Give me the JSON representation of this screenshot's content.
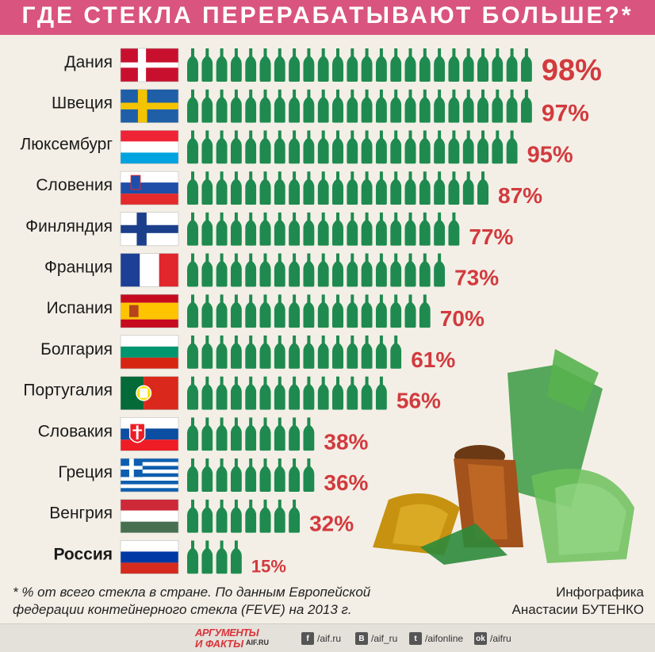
{
  "title": "ГДЕ СТЕКЛА ПЕРЕРАБАТЫВАЮТ БОЛЬШЕ?*",
  "chart_data": {
    "type": "bar",
    "title": "ГДЕ СТЕКЛА ПЕРЕРАБАТЫВАЮТ БОЛЬШЕ?*",
    "categories": [
      "Дания",
      "Швеция",
      "Люксембург",
      "Словения",
      "Финляндия",
      "Франция",
      "Испания",
      "Болгария",
      "Португалия",
      "Словакия",
      "Греция",
      "Венгрия",
      "Россия"
    ],
    "values": [
      98,
      97,
      95,
      87,
      77,
      73,
      70,
      61,
      56,
      38,
      36,
      32,
      15
    ],
    "value_labels": [
      "98%",
      "97%",
      "95%",
      "87%",
      "77%",
      "73%",
      "70%",
      "61%",
      "56%",
      "38%",
      "36%",
      "32%",
      "15%"
    ],
    "bottles_per_bar": [
      24,
      24,
      23,
      21,
      19,
      18,
      17,
      15,
      14,
      9,
      9,
      8,
      4
    ],
    "highlight": "Россия",
    "ylim": [
      0,
      100
    ],
    "grid": false
  },
  "colors": {
    "bottle": "#1f8a4f",
    "bottle_dark": "#136a3b",
    "percent": "#d23a3e",
    "russia_label": "#d9547f",
    "russia_percent": "#e07aa0",
    "title_bar": "#d9547f"
  },
  "flags": [
    "flag-denmark",
    "flag-sweden",
    "flag-luxembourg",
    "flag-slovenia",
    "flag-finland",
    "flag-france",
    "flag-spain",
    "flag-bulgaria",
    "flag-portugal",
    "flag-slovakia",
    "flag-greece",
    "flag-hungary",
    "flag-russia"
  ],
  "footnote": {
    "line1": "* % от всего стекла в стране. По данным Европейской",
    "line2": "федерации контейнерного стекла (FEVE) на 2013 г."
  },
  "credit": {
    "line1": "Инфографика",
    "line2": "Анастасии БУТЕНКО"
  },
  "footer": {
    "logo_line1": "АРГУМЕНТЫ",
    "logo_line2": "И ФАКТЫ",
    "logo_site": "AIF.RU",
    "social": [
      {
        "icon": "f",
        "label": "/aif.ru"
      },
      {
        "icon": "В",
        "label": "/aif_ru"
      },
      {
        "icon": "t",
        "label": "/aifonline"
      },
      {
        "icon": "ok",
        "label": "/aifru"
      }
    ]
  }
}
